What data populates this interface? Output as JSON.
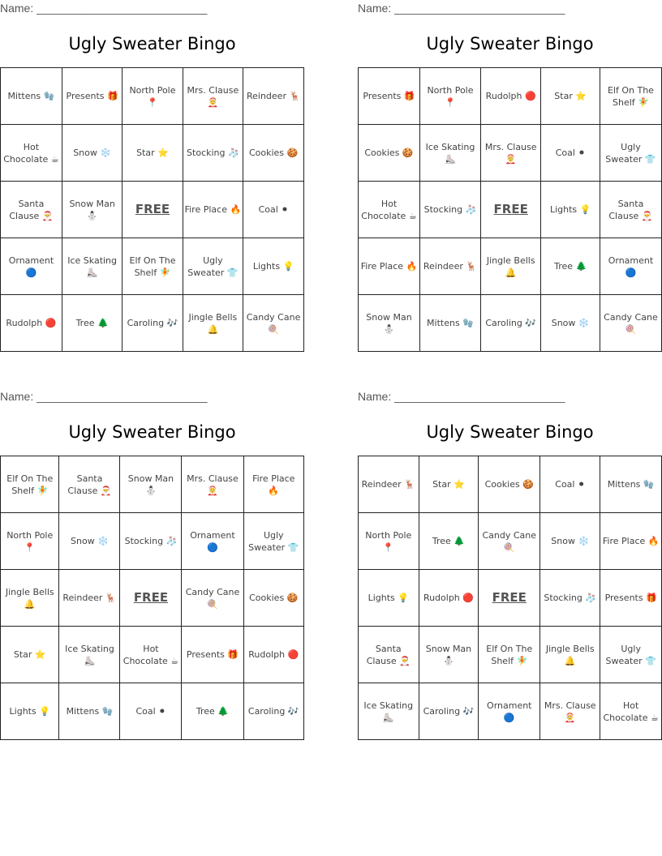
{
  "cards": [
    {
      "name_label": "Name: ___________________________",
      "title": "Ugly Sweater Bingo",
      "rows": [
        [
          "Mittens 🧤",
          "Presents 🎁",
          "North Pole 📍",
          "Mrs. Clause 🤶",
          "Reindeer 🦌"
        ],
        [
          "Hot Chocolate ☕",
          "Snow ❄️",
          "Star ⭐",
          "Stocking 🧦",
          "Cookies 🍪"
        ],
        [
          "Santa Clause 🎅",
          "Snow Man ⛄",
          "FREE",
          "Fire Place 🔥",
          "Coal ⚫"
        ],
        [
          "Ornament 🔵",
          "Ice Skating ⛸️",
          "Elf On The Shelf 🧚",
          "Ugly Sweater 👕",
          "Lights 💡"
        ],
        [
          "Rudolph 🔴",
          "Tree 🌲",
          "Caroling 🎶",
          "Jingle Bells 🔔",
          "Candy Cane 🍭"
        ]
      ]
    },
    {
      "name_label": "Name: ___________________________",
      "title": "Ugly Sweater Bingo",
      "rows": [
        [
          "Presents 🎁",
          "North Pole 📍",
          "Rudolph 🔴",
          "Star ⭐",
          "Elf On The Shelf 🧚"
        ],
        [
          "Cookies 🍪",
          "Ice Skating ⛸️",
          "Mrs. Clause 🤶",
          "Coal ⚫",
          "Ugly Sweater 👕"
        ],
        [
          "Hot Chocolate ☕",
          "Stocking 🧦",
          "FREE",
          "Lights 💡",
          "Santa Clause 🎅"
        ],
        [
          "Fire Place 🔥",
          "Reindeer 🦌",
          "Jingle Bells 🔔",
          "Tree 🌲",
          "Ornament 🔵"
        ],
        [
          "Snow Man ⛄",
          "Mittens 🧤",
          "Caroling 🎶",
          "Snow ❄️",
          "Candy Cane 🍭"
        ]
      ]
    },
    {
      "name_label": "Name: ___________________________",
      "title": "Ugly Sweater Bingo",
      "rows": [
        [
          "Elf On The Shelf 🧚",
          "Santa Clause 🎅",
          "Snow Man ⛄",
          "Mrs. Clause 🤶",
          "Fire Place 🔥"
        ],
        [
          "North Pole 📍",
          "Snow ❄️",
          "Stocking 🧦",
          "Ornament 🔵",
          "Ugly Sweater 👕"
        ],
        [
          "Jingle Bells 🔔",
          "Reindeer 🦌",
          "FREE",
          "Candy Cane 🍭",
          "Cookies 🍪"
        ],
        [
          "Star ⭐",
          "Ice Skating ⛸️",
          "Hot Chocolate ☕",
          "Presents 🎁",
          "Rudolph 🔴"
        ],
        [
          "Lights 💡",
          "Mittens 🧤",
          "Coal ⚫",
          "Tree 🌲",
          "Caroling 🎶"
        ]
      ]
    },
    {
      "name_label": "Name: ___________________________",
      "title": "Ugly Sweater Bingo",
      "rows": [
        [
          "Reindeer 🦌",
          "Star ⭐",
          "Cookies 🍪",
          "Coal ⚫",
          "Mittens 🧤"
        ],
        [
          "North Pole 📍",
          "Tree 🌲",
          "Candy Cane 🍭",
          "Snow ❄️",
          "Fire Place 🔥"
        ],
        [
          "Lights 💡",
          "Rudolph 🔴",
          "FREE",
          "Stocking 🧦",
          "Presents 🎁"
        ],
        [
          "Santa Clause 🎅",
          "Snow Man ⛄",
          "Elf On The Shelf 🧚",
          "Jingle Bells 🔔",
          "Ugly Sweater 👕"
        ],
        [
          "Ice Skating ⛸️",
          "Caroling 🎶",
          "Ornament 🔵",
          "Mrs. Clause 🤶",
          "Hot Chocolate ☕"
        ]
      ]
    }
  ]
}
